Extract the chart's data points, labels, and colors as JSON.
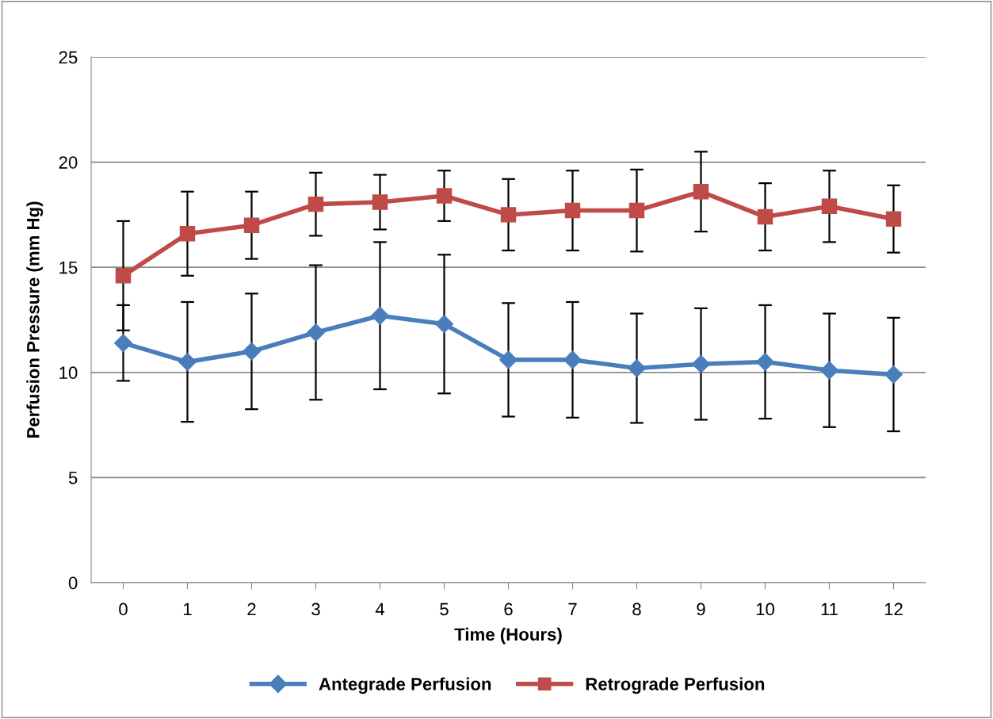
{
  "chart_data": {
    "type": "line",
    "xlabel": "Time (Hours)",
    "ylabel": "Perfusion Pressure (mm Hg)",
    "categories": [
      "0",
      "1",
      "2",
      "3",
      "4",
      "5",
      "6",
      "7",
      "8",
      "9",
      "10",
      "11",
      "12"
    ],
    "series": [
      {
        "name": "Antegrade Perfusion",
        "color": "#4a7ebb",
        "marker": "diamond",
        "values": [
          11.4,
          10.5,
          11.0,
          11.9,
          12.7,
          12.3,
          10.6,
          10.6,
          10.2,
          10.4,
          10.5,
          10.1,
          9.9
        ],
        "errors": [
          1.8,
          2.85,
          2.75,
          3.2,
          3.5,
          3.3,
          2.7,
          2.75,
          2.6,
          2.65,
          2.7,
          2.7,
          2.7
        ]
      },
      {
        "name": "Retrograde Perfusion",
        "color": "#be4b48",
        "marker": "square",
        "values": [
          14.6,
          16.6,
          17.0,
          18.0,
          18.1,
          18.4,
          17.5,
          17.7,
          17.7,
          18.6,
          17.4,
          17.9,
          17.3
        ],
        "errors": [
          2.6,
          2.0,
          1.6,
          1.5,
          1.3,
          1.2,
          1.7,
          1.9,
          1.95,
          1.9,
          1.6,
          1.7,
          1.6
        ]
      }
    ],
    "ylim": [
      0,
      25
    ],
    "yticks": [
      0,
      5,
      10,
      15,
      20,
      25
    ],
    "grid": "y",
    "legend": "bottom",
    "line_style": "solid"
  }
}
